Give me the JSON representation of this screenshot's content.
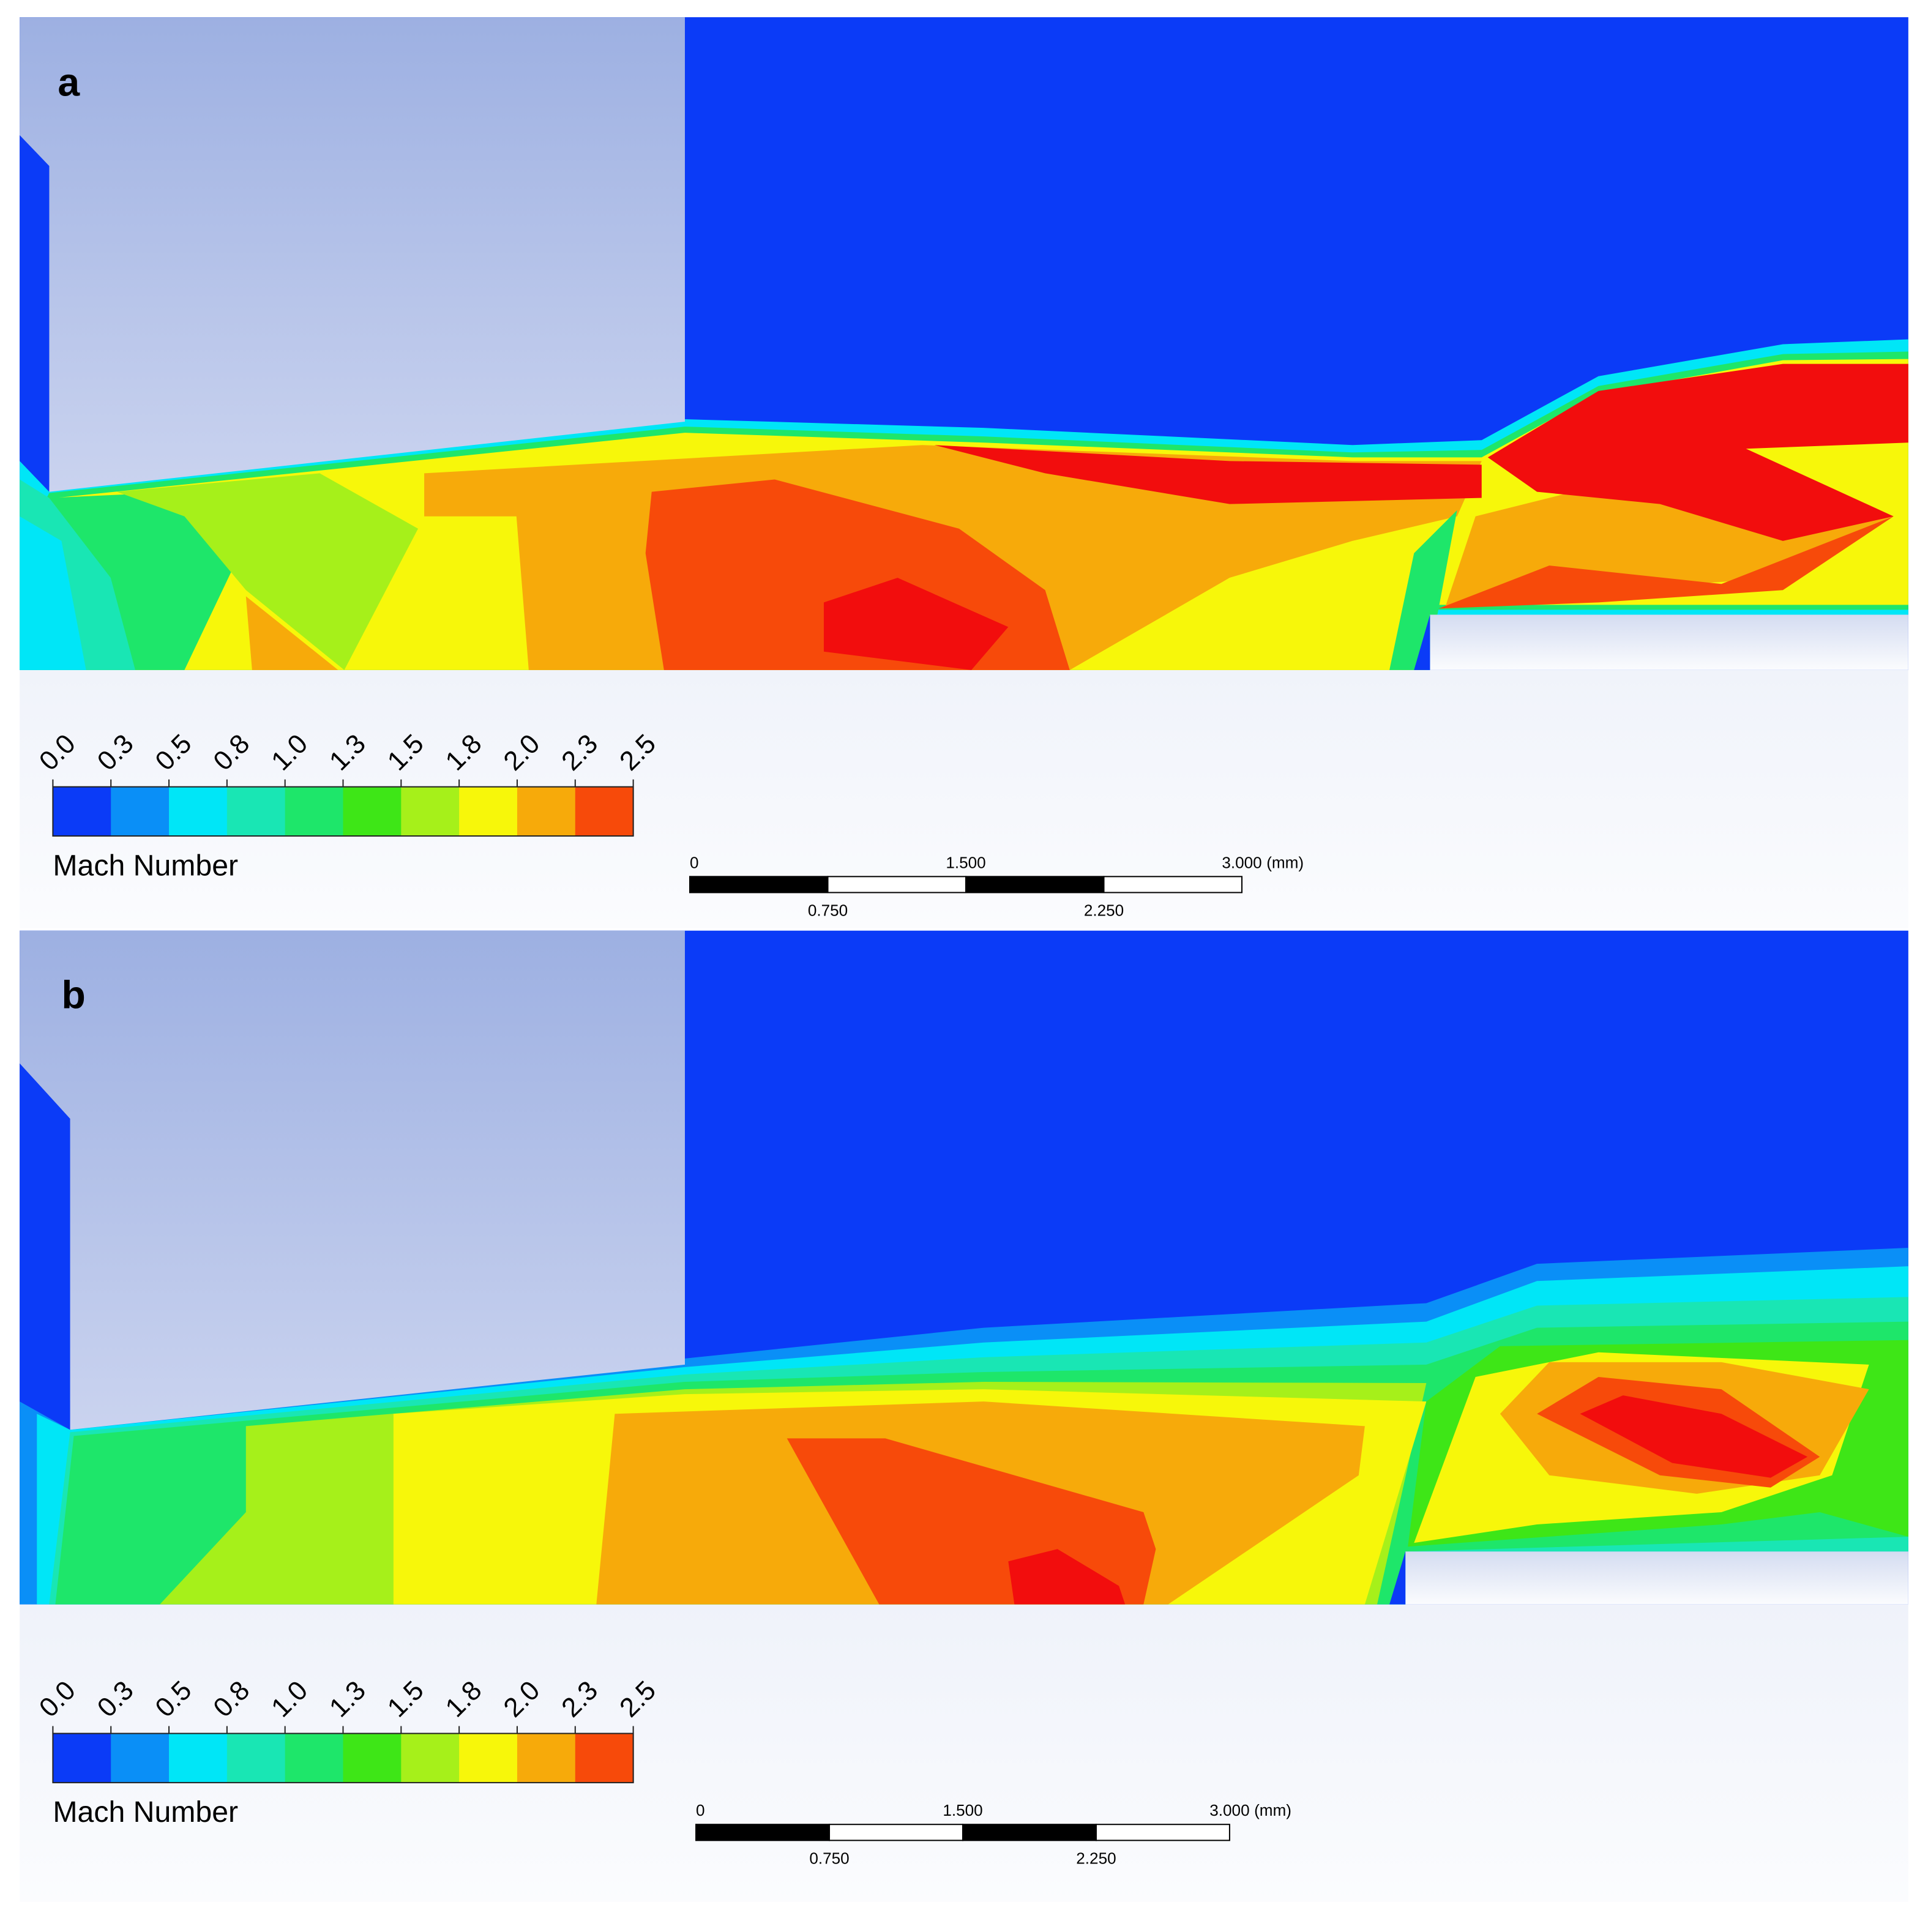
{
  "panels": [
    {
      "label": "a",
      "colorbar": {
        "title": "Mach Number",
        "ticks": [
          "0.0",
          "0.3",
          "0.5",
          "0.8",
          "1.0",
          "1.3",
          "1.5",
          "1.8",
          "2.0",
          "2.3",
          "2.5"
        ],
        "colors": [
          "#0b3bf7",
          "#0a8ff7",
          "#00e6f7",
          "#19e6b4",
          "#1ee66a",
          "#3ee617",
          "#a6f01a",
          "#f7f70a",
          "#f7aa0a",
          "#f74a0a"
        ]
      },
      "scale_bar": {
        "labels": [
          "0",
          "1.500",
          "3.000"
        ],
        "sublabels": [
          "0.750",
          "2.250"
        ],
        "unit": "(mm)"
      }
    },
    {
      "label": "b",
      "colorbar": {
        "title": "Mach Number",
        "ticks": [
          "0.0",
          "0.3",
          "0.5",
          "0.8",
          "1.0",
          "1.3",
          "1.5",
          "1.8",
          "2.0",
          "2.3",
          "2.5"
        ],
        "colors": [
          "#0b3bf7",
          "#0a8ff7",
          "#00e6f7",
          "#19e6b4",
          "#1ee66a",
          "#3ee617",
          "#a6f01a",
          "#f7f70a",
          "#f7aa0a",
          "#f74a0a"
        ]
      },
      "scale_bar": {
        "labels": [
          "0",
          "1.500",
          "3.000"
        ],
        "sublabels": [
          "0.750",
          "2.250"
        ],
        "unit": "(mm)"
      }
    }
  ]
}
